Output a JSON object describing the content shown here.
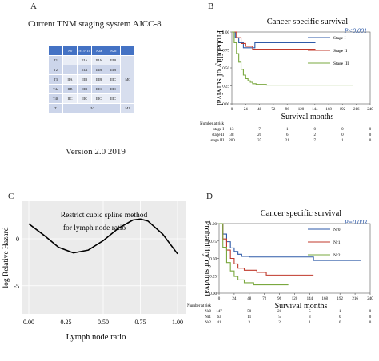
{
  "panelA": {
    "letter": "A",
    "title": "Current TNM staging system AJCC-8",
    "table_header": [
      "",
      "N0",
      "N1/N1c",
      "N2a",
      "N2b"
    ],
    "table_rows": [
      [
        "T1",
        "I",
        "IIIA",
        "IIIA",
        "IIIB"
      ],
      [
        "T2",
        "I",
        "IIIA",
        "IIIB",
        "IIIB"
      ],
      [
        "T3",
        "IIA",
        "IIIB",
        "IIIB",
        "IIIC"
      ],
      [
        "T4a",
        "IIB",
        "IIIB",
        "IIIC",
        "IIIC"
      ],
      [
        "T4b",
        "IIC",
        "IIIC",
        "IIIC",
        "IIIC"
      ]
    ],
    "m0_label": "M0",
    "footer": [
      "T",
      "IV",
      "M1"
    ],
    "version": "Version 2.0 2019"
  },
  "panelB": {
    "letter": "B",
    "title": "Cancer specific survival",
    "pvalue": "P<0.001",
    "ylabel": "Probability of survival",
    "xlabel": "Survival months",
    "risk_header": "Number at risk",
    "risk_rows": [
      {
        "label": "stage I",
        "values": [
          "13",
          "7",
          "1",
          "0",
          "0",
          "0"
        ]
      },
      {
        "label": "stage II",
        "values": [
          "38",
          "20",
          "6",
          "2",
          "0",
          "0"
        ]
      },
      {
        "label": "stage III",
        "values": [
          "200",
          "37",
          "21",
          "7",
          "1",
          "0"
        ]
      }
    ]
  },
  "panelC": {
    "letter": "C",
    "title_line1": "Restrict cubic spline method",
    "title_line2": "for lymph node ratio",
    "ylabel": "log Relative Hazard",
    "xlabel": "Lymph node ratio"
  },
  "panelD": {
    "letter": "D",
    "title": "Cancer specific survival",
    "pvalue": "P=0.003",
    "ylabel": "Probability of survival",
    "xlabel": "Survival months",
    "risk_header": "Number at risk",
    "risk_rows": [
      {
        "label": "Nr0",
        "values": [
          "147",
          "50",
          "21",
          "5",
          "1",
          "0"
        ]
      },
      {
        "label": "Nr1",
        "values": [
          "63",
          "11",
          "5",
          "3",
          "0",
          "0"
        ]
      },
      {
        "label": "Nr2",
        "values": [
          "41",
          "3",
          "2",
          "1",
          "0",
          "0"
        ]
      }
    ]
  },
  "chart_data": [
    {
      "type": "line",
      "panel": "B",
      "title": "Cancer specific survival",
      "xlabel": "Survival months",
      "ylabel": "Probability of survival",
      "xlim": [
        0,
        240
      ],
      "ylim": [
        0,
        1
      ],
      "xticks": [
        0,
        24,
        48,
        72,
        96,
        120,
        144,
        168,
        192,
        216,
        240
      ],
      "yticks": [
        0,
        0.25,
        0.5,
        0.75,
        1.0
      ],
      "legend_position": "right",
      "series": [
        {
          "name": "Stage I",
          "color": "#2e5aa8",
          "x": [
            0,
            6,
            12,
            20,
            30,
            40,
            145
          ],
          "y": [
            1.0,
            0.92,
            0.85,
            0.78,
            0.78,
            0.85,
            0.85
          ]
        },
        {
          "name": "Stage II",
          "color": "#c0392b",
          "x": [
            0,
            8,
            16,
            24,
            36,
            48,
            145
          ],
          "y": [
            1.0,
            0.92,
            0.84,
            0.8,
            0.76,
            0.76,
            0.76
          ]
        },
        {
          "name": "Stage III",
          "color": "#7aa83f",
          "x": [
            0,
            4,
            8,
            12,
            16,
            20,
            24,
            28,
            32,
            36,
            42,
            60,
            100,
            145,
            210
          ],
          "y": [
            1.0,
            0.85,
            0.7,
            0.58,
            0.48,
            0.4,
            0.35,
            0.32,
            0.3,
            0.28,
            0.27,
            0.26,
            0.26,
            0.26,
            0.26
          ]
        }
      ]
    },
    {
      "type": "line",
      "panel": "C",
      "title": "Restrict cubic spline method for lymph node ratio",
      "xlabel": "Lymph node ratio",
      "ylabel": "log Relative Hazard",
      "xlim": [
        0,
        1
      ],
      "ylim": [
        -8,
        4
      ],
      "xticks": [
        0.0,
        0.25,
        0.5,
        0.75,
        1.0
      ],
      "yticks": [
        -5,
        0
      ],
      "series": [
        {
          "name": "",
          "color": "#000000",
          "x": [
            0.0,
            0.1,
            0.2,
            0.3,
            0.4,
            0.5,
            0.6,
            0.7,
            0.75,
            0.8,
            0.9,
            1.0
          ],
          "y": [
            1.6,
            0.4,
            -0.9,
            -1.5,
            -1.2,
            -0.2,
            1.1,
            2.0,
            2.1,
            1.9,
            0.5,
            -1.6
          ]
        }
      ]
    },
    {
      "type": "line",
      "panel": "D",
      "title": "Cancer specific survival",
      "xlabel": "Survival months",
      "ylabel": "Probability of survival",
      "xlim": [
        0,
        240
      ],
      "ylim": [
        0,
        1
      ],
      "xticks": [
        0,
        24,
        48,
        72,
        96,
        120,
        144,
        168,
        192,
        216,
        240
      ],
      "yticks": [
        0,
        0.25,
        0.5,
        0.75,
        1.0
      ],
      "legend_position": "right",
      "series": [
        {
          "name": "Nr0",
          "color": "#2e5aa8",
          "x": [
            0,
            6,
            12,
            18,
            24,
            30,
            36,
            48,
            72,
            120,
            150,
            225
          ],
          "y": [
            1.0,
            0.85,
            0.74,
            0.65,
            0.6,
            0.56,
            0.53,
            0.52,
            0.52,
            0.52,
            0.47,
            0.47
          ]
        },
        {
          "name": "Nr1",
          "color": "#c0392b",
          "x": [
            0,
            6,
            12,
            18,
            24,
            30,
            40,
            60,
            75,
            150
          ],
          "y": [
            1.0,
            0.78,
            0.62,
            0.5,
            0.42,
            0.36,
            0.33,
            0.3,
            0.26,
            0.26
          ]
        },
        {
          "name": "Nr2",
          "color": "#7aa83f",
          "x": [
            0,
            6,
            12,
            18,
            24,
            30,
            40,
            55,
            80,
            110
          ],
          "y": [
            1.0,
            0.66,
            0.44,
            0.32,
            0.24,
            0.19,
            0.15,
            0.12,
            0.12,
            0.12
          ]
        }
      ]
    }
  ]
}
